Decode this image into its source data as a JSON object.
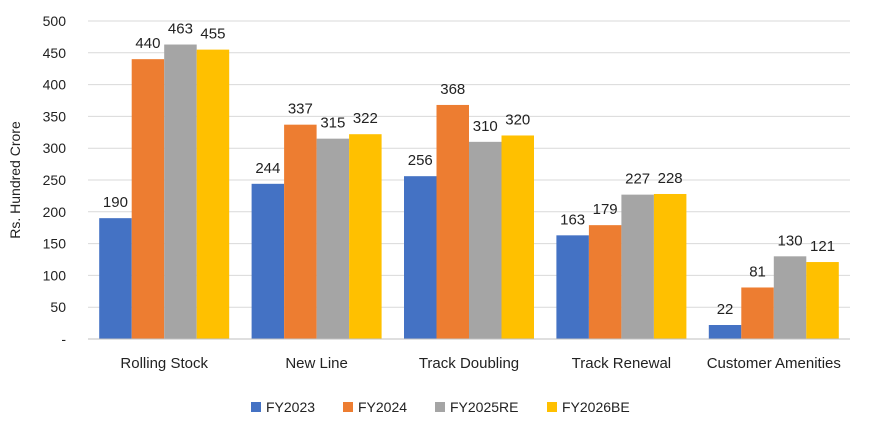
{
  "chart_data": {
    "type": "bar",
    "categories": [
      "Rolling Stock",
      "New Line",
      "Track Doubling",
      "Track Renewal",
      "Customer Amenities"
    ],
    "series": [
      {
        "name": "FY2023",
        "color": "#4472C4",
        "values": [
          190,
          244,
          256,
          163,
          22
        ]
      },
      {
        "name": "FY2024",
        "color": "#ED7D31",
        "values": [
          440,
          337,
          368,
          179,
          81
        ]
      },
      {
        "name": "FY2025RE",
        "color": "#A5A5A5",
        "values": [
          463,
          315,
          310,
          227,
          130
        ]
      },
      {
        "name": "FY2026BE",
        "color": "#FFC000",
        "values": [
          455,
          322,
          320,
          228,
          121
        ]
      }
    ],
    "ylabel": "Rs. Hundred Crore",
    "ylim": [
      0,
      500
    ],
    "yticks": [
      0,
      50,
      100,
      150,
      200,
      250,
      300,
      350,
      400,
      450,
      500
    ],
    "ytick_labels": [
      "-",
      "50",
      "100",
      "150",
      "200",
      "250",
      "300",
      "350",
      "400",
      "450",
      "500"
    ],
    "grid": true,
    "legend_position": "bottom",
    "data_labels": true
  }
}
